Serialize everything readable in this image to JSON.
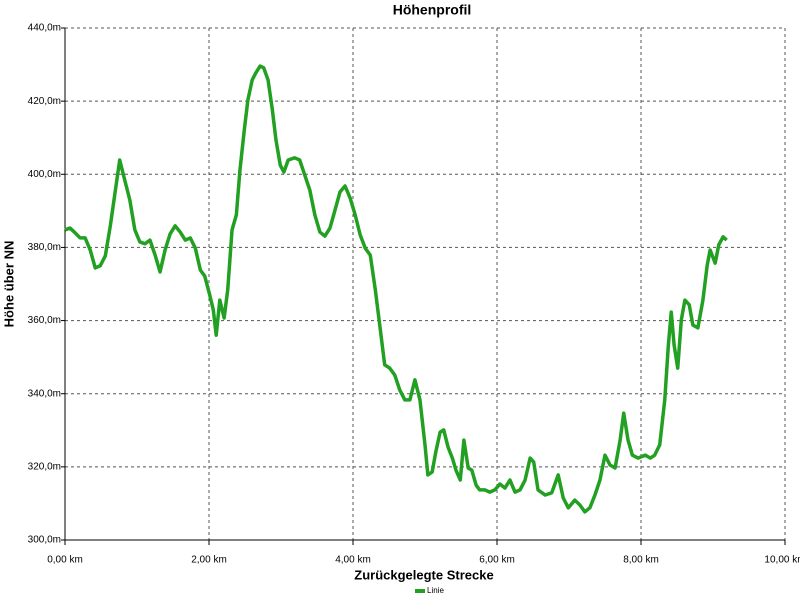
{
  "chart_data": {
    "type": "line",
    "title": "Höhenprofil",
    "x_label": "Zurückgelegte Strecke",
    "y_label": "Höhe über NN",
    "xlim": [
      0,
      10
    ],
    "ylim": [
      300,
      440
    ],
    "xticks": [
      {
        "value": 0,
        "label": "0,00 km"
      },
      {
        "value": 2,
        "label": "2,00 km"
      },
      {
        "value": 4,
        "label": "4,00 km"
      },
      {
        "value": 6,
        "label": "6,00 km"
      },
      {
        "value": 8,
        "label": "8,00 km"
      },
      {
        "value": 10,
        "label": "10,00 km"
      }
    ],
    "yticks": [
      {
        "value": 300,
        "label": "300,0m"
      },
      {
        "value": 320,
        "label": "320,0m"
      },
      {
        "value": 340,
        "label": "340,0m"
      },
      {
        "value": 360,
        "label": "360,0m"
      },
      {
        "value": 380,
        "label": "380,0m"
      },
      {
        "value": 400,
        "label": "400,0m"
      },
      {
        "value": 420,
        "label": "420,0m"
      },
      {
        "value": 440,
        "label": "440,0m"
      }
    ],
    "grid": true,
    "legend": "bottom",
    "x": [
      0,
      0.07,
      0.14,
      0.21,
      0.28,
      0.35,
      0.42,
      0.49,
      0.56,
      0.63,
      0.69,
      0.76,
      0.83,
      0.9,
      0.97,
      1.04,
      1.11,
      1.18,
      1.25,
      1.32,
      1.39,
      1.46,
      1.53,
      1.6,
      1.67,
      1.74,
      1.81,
      1.88,
      1.94,
      2.01,
      2.06,
      2.1,
      2.15,
      2.21,
      2.26,
      2.32,
      2.38,
      2.43,
      2.49,
      2.54,
      2.6,
      2.65,
      2.71,
      2.76,
      2.82,
      2.88,
      2.93,
      2.99,
      3.04,
      3.1,
      3.19,
      3.26,
      3.33,
      3.4,
      3.47,
      3.54,
      3.61,
      3.68,
      3.75,
      3.82,
      3.89,
      3.96,
      4.03,
      4.1,
      4.17,
      4.24,
      4.31,
      4.38,
      4.44,
      4.51,
      4.58,
      4.65,
      4.72,
      4.79,
      4.86,
      4.93,
      5.0,
      5.04,
      5.1,
      5.15,
      5.21,
      5.26,
      5.32,
      5.38,
      5.43,
      5.49,
      5.54,
      5.6,
      5.65,
      5.71,
      5.76,
      5.83,
      5.9,
      5.97,
      6.04,
      6.11,
      6.18,
      6.25,
      6.32,
      6.39,
      6.46,
      6.51,
      6.57,
      6.67,
      6.76,
      6.85,
      6.92,
      6.99,
      7.08,
      7.15,
      7.22,
      7.29,
      7.36,
      7.43,
      7.5,
      7.57,
      7.64,
      7.71,
      7.76,
      7.82,
      7.88,
      7.96,
      8.06,
      8.13,
      8.19,
      8.26,
      8.33,
      8.38,
      8.42,
      8.46,
      8.51,
      8.56,
      8.61,
      8.67,
      8.72,
      8.79,
      8.86,
      8.92,
      8.96,
      9.03,
      9.08,
      9.14,
      9.19
    ],
    "series": [
      {
        "name": "Linie",
        "color": "#22a022",
        "values": [
          384.8,
          385.3,
          384,
          382.6,
          382.6,
          379.3,
          374.4,
          375,
          377.7,
          386,
          394.3,
          403.9,
          398.4,
          393,
          384.8,
          381.5,
          381,
          382,
          378,
          373.3,
          379.3,
          383.7,
          385.9,
          384.2,
          382,
          382.6,
          379.8,
          373.8,
          372.2,
          367,
          362.9,
          356,
          365.6,
          360.7,
          368.4,
          384.8,
          388.9,
          401.2,
          412.1,
          420.3,
          425.8,
          427.7,
          429.6,
          429.1,
          425.8,
          417.6,
          409.4,
          402.5,
          400.6,
          403.9,
          404.5,
          403.9,
          399.8,
          395.7,
          388.9,
          384.2,
          383.1,
          385.3,
          390.2,
          395.2,
          396.8,
          393.5,
          388.9,
          383.4,
          379.8,
          377.9,
          368.4,
          357.4,
          347.9,
          347,
          345.1,
          341,
          338.3,
          338.3,
          343.8,
          338.3,
          326,
          317.8,
          318.6,
          324.1,
          329.5,
          330.1,
          325.4,
          322.4,
          319.1,
          316.4,
          327.3,
          319.7,
          319.1,
          315,
          313.7,
          313.7,
          313.1,
          313.7,
          315.3,
          314.2,
          316.4,
          313.1,
          313.7,
          316.4,
          322.4,
          321.3,
          313.7,
          312.3,
          312.9,
          317.8,
          311.5,
          308.8,
          310.9,
          309.6,
          307.7,
          308.8,
          312.3,
          316.4,
          323.2,
          320.5,
          319.7,
          327.3,
          334.7,
          327.3,
          323.2,
          322.4,
          323.2,
          322.4,
          323.2,
          326,
          338.3,
          353.3,
          362.3,
          353.3,
          347,
          360.2,
          365.6,
          364.3,
          358.8,
          358,
          365.6,
          375.2,
          379.3,
          375.7,
          380.7,
          382.9,
          382
        ]
      }
    ]
  }
}
